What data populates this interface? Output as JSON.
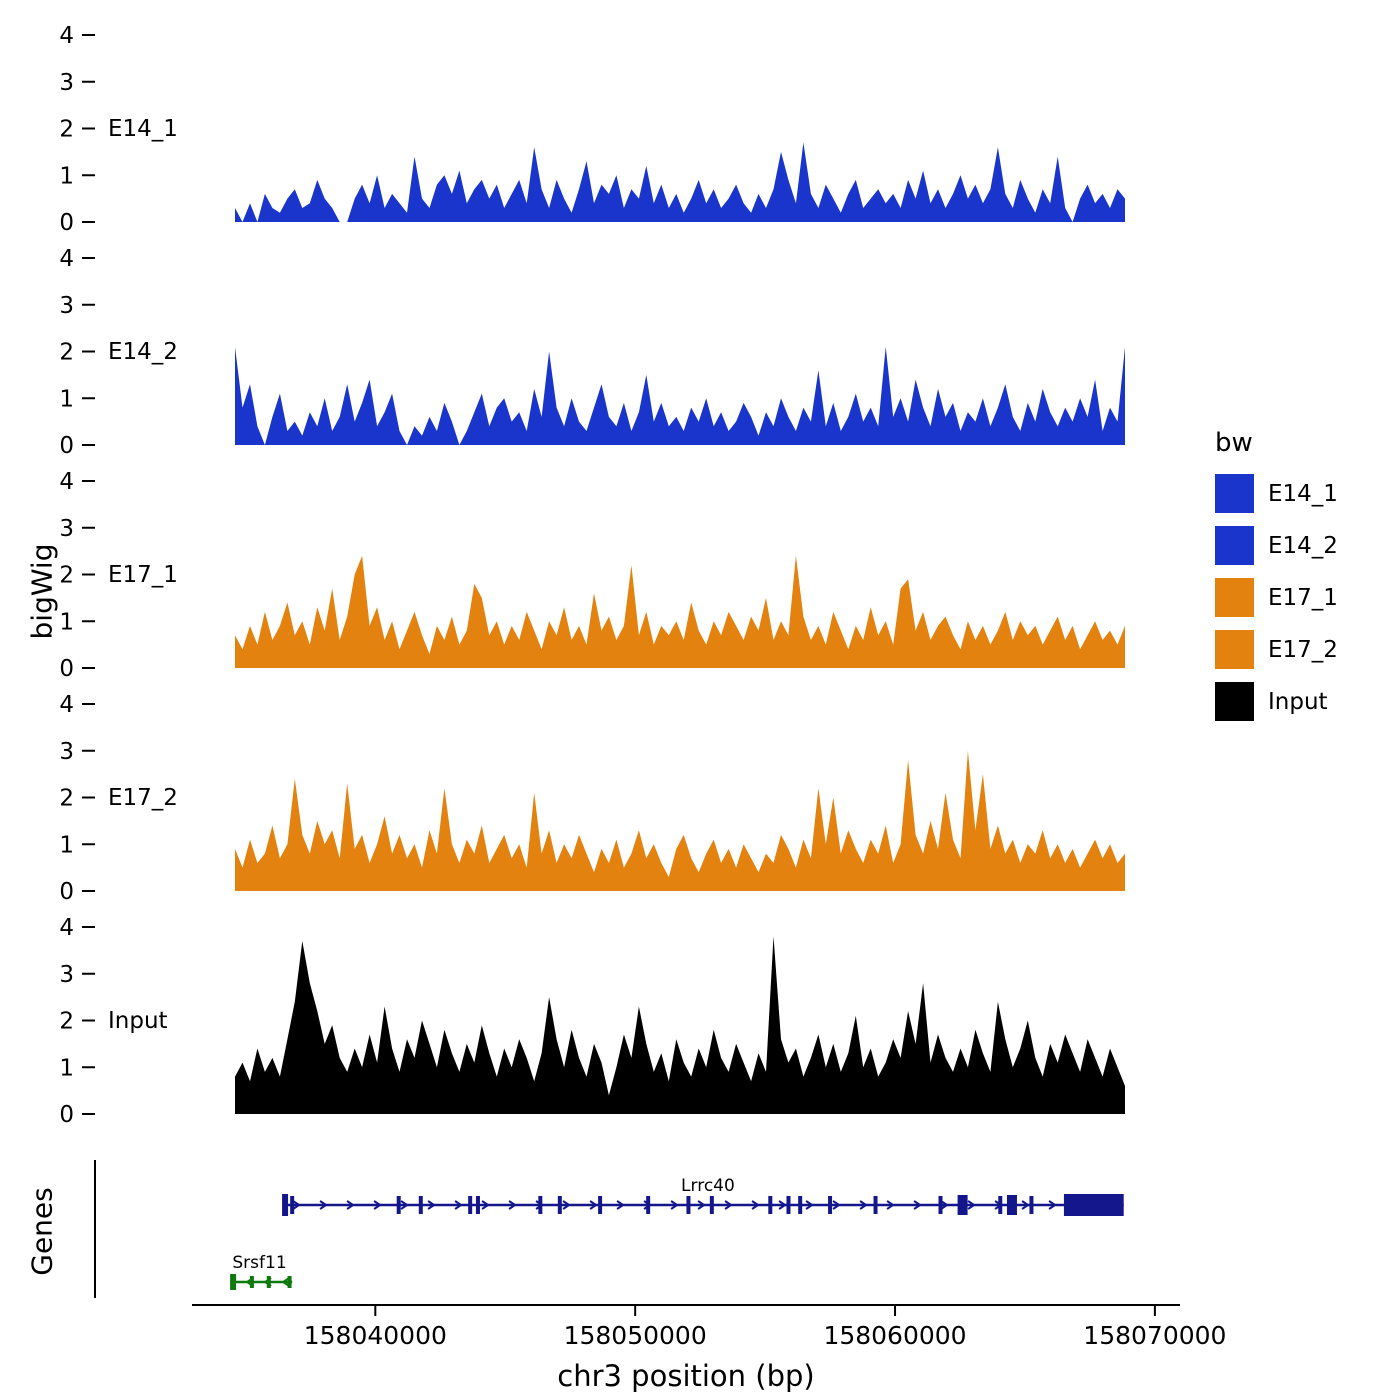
{
  "figure": {
    "background": "#ffffff"
  },
  "labels": {
    "ylabel": "bigWig",
    "genes": "Genes",
    "xlabel": "chr3 position (bp)"
  },
  "legend": {
    "title": "bw",
    "items": [
      {
        "label": "E14_1",
        "color": "#1a35cc"
      },
      {
        "label": "E14_2",
        "color": "#1a35cc"
      },
      {
        "label": "E17_1",
        "color": "#e3820e"
      },
      {
        "label": "E17_2",
        "color": "#e3820e"
      },
      {
        "label": "Input",
        "color": "#000000"
      }
    ]
  },
  "chart_data": {
    "type": "area",
    "title": "",
    "xlabel": "chr3 position (bp)",
    "ylabel": "bigWig",
    "x_range_bp": [
      158034600,
      158068850
    ],
    "x_axis_ticks": [
      158040000,
      158050000,
      158060000,
      158070000
    ],
    "ylim": [
      0,
      4
    ],
    "y_ticks": [
      0,
      1,
      2,
      3,
      4
    ],
    "series": [
      {
        "name": "E14_1",
        "color": "#1a35cc",
        "values": [
          0.3,
          0,
          0.4,
          0,
          0.6,
          0.3,
          0.2,
          0.5,
          0.7,
          0.3,
          0.4,
          0.9,
          0.5,
          0.3,
          0,
          0,
          0.5,
          0.8,
          0.4,
          1.0,
          0.3,
          0.6,
          0.4,
          0.2,
          1.4,
          0.5,
          0.3,
          0.8,
          1.0,
          0.6,
          1.1,
          0.4,
          0.7,
          0.9,
          0.5,
          0.8,
          0.3,
          0.6,
          0.9,
          0.4,
          1.6,
          0.7,
          0.3,
          0.9,
          0.5,
          0.2,
          0.7,
          1.3,
          0.4,
          0.8,
          0.6,
          1.0,
          0.3,
          0.7,
          0.5,
          1.2,
          0.4,
          0.8,
          0.3,
          0.6,
          0.2,
          0.5,
          0.9,
          0.4,
          0.7,
          0.3,
          0.5,
          0.8,
          0.4,
          0.2,
          0.6,
          0.3,
          0.7,
          1.5,
          0.9,
          0.4,
          1.7,
          0.6,
          0.3,
          0.8,
          0.5,
          0.2,
          0.6,
          0.9,
          0.3,
          0.5,
          0.7,
          0.4,
          0.6,
          0.3,
          0.9,
          0.5,
          1.1,
          0.4,
          0.7,
          0.3,
          0.6,
          1.0,
          0.5,
          0.8,
          0.4,
          0.7,
          1.6,
          0.6,
          0.3,
          0.9,
          0.5,
          0.2,
          0.7,
          0.4,
          1.4,
          0.3,
          0,
          0.5,
          0.8,
          0.4,
          0.6,
          0.3,
          0.7,
          0.5
        ]
      },
      {
        "name": "E14_2",
        "color": "#1a35cc",
        "values": [
          2.1,
          0.8,
          1.3,
          0.4,
          0,
          0.6,
          1.1,
          0.3,
          0.5,
          0.2,
          0.7,
          0.4,
          1.0,
          0.3,
          0.6,
          1.3,
          0.5,
          0.9,
          1.4,
          0.4,
          0.7,
          1.1,
          0.3,
          0,
          0.4,
          0.2,
          0.6,
          0.3,
          0.9,
          0.5,
          0,
          0.3,
          0.7,
          1.1,
          0.4,
          0.8,
          1.0,
          0.5,
          0.7,
          0.3,
          1.2,
          0.6,
          2.0,
          0.8,
          0.4,
          1.0,
          0.5,
          0.3,
          0.8,
          1.3,
          0.6,
          0.4,
          0.9,
          0.3,
          0.7,
          1.5,
          0.5,
          0.9,
          0.4,
          0.6,
          0.3,
          0.8,
          0.5,
          1.0,
          0.4,
          0.7,
          0.3,
          0.5,
          0.9,
          0.6,
          0.2,
          0.7,
          0.4,
          1.0,
          0.6,
          0.3,
          0.8,
          0.5,
          1.6,
          0.4,
          0.9,
          0.3,
          0.6,
          1.1,
          0.5,
          0.8,
          0.4,
          2.1,
          0.6,
          1.0,
          0.5,
          1.4,
          0.8,
          0.4,
          1.2,
          0.6,
          0.9,
          0.3,
          0.7,
          0.5,
          1.0,
          0.4,
          0.8,
          1.3,
          0.6,
          0.3,
          0.9,
          0.5,
          1.2,
          0.7,
          0.4,
          0.8,
          0.5,
          1.0,
          0.6,
          1.4,
          0.3,
          0.8,
          0.5,
          2.1
        ]
      },
      {
        "name": "E17_1",
        "color": "#e3820e",
        "values": [
          0.7,
          0.4,
          0.9,
          0.5,
          1.2,
          0.6,
          0.9,
          1.4,
          0.7,
          1.0,
          0.5,
          1.3,
          0.8,
          1.7,
          0.6,
          1.1,
          2.0,
          2.4,
          0.9,
          1.3,
          0.6,
          1.0,
          0.4,
          0.8,
          1.2,
          0.7,
          0.3,
          0.9,
          0.6,
          1.1,
          0.5,
          0.8,
          1.8,
          1.5,
          0.7,
          1.0,
          0.5,
          0.9,
          0.6,
          1.2,
          0.8,
          0.4,
          1.0,
          0.7,
          1.3,
          0.6,
          0.9,
          0.5,
          1.6,
          0.8,
          1.1,
          0.6,
          0.9,
          2.2,
          0.7,
          1.2,
          0.5,
          0.9,
          0.7,
          1.0,
          0.6,
          1.4,
          0.8,
          0.5,
          1.0,
          0.7,
          1.2,
          0.9,
          0.6,
          1.1,
          0.8,
          1.5,
          0.6,
          1.0,
          0.7,
          2.4,
          1.1,
          0.6,
          0.9,
          0.5,
          1.2,
          0.8,
          0.4,
          0.9,
          0.6,
          1.3,
          0.7,
          1.0,
          0.5,
          1.7,
          1.9,
          0.8,
          1.2,
          0.6,
          0.9,
          1.1,
          0.7,
          0.4,
          1.0,
          0.6,
          0.9,
          0.5,
          0.8,
          1.2,
          0.6,
          1.0,
          0.7,
          0.9,
          0.5,
          0.8,
          1.1,
          0.6,
          0.9,
          0.4,
          0.7,
          1.0,
          0.6,
          0.8,
          0.5,
          0.9
        ]
      },
      {
        "name": "E17_2",
        "color": "#e3820e",
        "values": [
          0.9,
          0.5,
          1.1,
          0.6,
          0.8,
          1.4,
          0.7,
          1.0,
          2.4,
          1.2,
          0.8,
          1.5,
          1.0,
          1.3,
          0.7,
          2.3,
          0.9,
          1.2,
          0.6,
          1.0,
          1.6,
          0.8,
          1.2,
          0.7,
          1.0,
          0.5,
          1.3,
          0.8,
          2.2,
          1.0,
          0.6,
          1.1,
          0.8,
          1.4,
          0.6,
          0.9,
          1.2,
          0.7,
          1.0,
          0.5,
          2.1,
          0.8,
          1.3,
          0.6,
          1.0,
          0.7,
          1.2,
          0.8,
          0.4,
          0.9,
          0.6,
          1.1,
          0.5,
          0.8,
          1.3,
          0.7,
          1.0,
          0.6,
          0.3,
          0.9,
          1.2,
          0.7,
          0.4,
          0.8,
          1.1,
          0.6,
          0.9,
          0.5,
          1.0,
          0.7,
          0.4,
          0.8,
          0.6,
          1.2,
          0.9,
          0.5,
          1.1,
          0.7,
          2.2,
          1.0,
          2.0,
          0.8,
          1.3,
          0.9,
          0.6,
          1.1,
          0.8,
          1.4,
          0.6,
          1.0,
          2.8,
          1.2,
          0.8,
          1.5,
          0.9,
          2.1,
          1.1,
          0.7,
          3.0,
          1.3,
          2.5,
          0.9,
          1.4,
          0.8,
          1.1,
          0.6,
          1.0,
          0.8,
          1.3,
          0.7,
          1.0,
          0.6,
          0.9,
          0.5,
          0.8,
          1.1,
          0.7,
          1.0,
          0.6,
          0.8
        ]
      },
      {
        "name": "Input",
        "color": "#000000",
        "values": [
          0.8,
          1.1,
          0.7,
          1.4,
          0.9,
          1.2,
          0.8,
          1.6,
          2.4,
          3.7,
          2.8,
          2.2,
          1.5,
          1.9,
          1.2,
          0.9,
          1.4,
          1.0,
          1.7,
          1.1,
          2.3,
          1.4,
          0.9,
          1.6,
          1.2,
          2.0,
          1.5,
          1.0,
          1.8,
          1.3,
          0.9,
          1.5,
          1.1,
          1.9,
          1.3,
          0.8,
          1.4,
          1.0,
          1.6,
          1.2,
          0.7,
          1.3,
          2.5,
          1.6,
          1.0,
          1.8,
          1.2,
          0.8,
          1.5,
          1.1,
          0.4,
          1.0,
          1.7,
          1.2,
          2.3,
          1.5,
          0.9,
          1.3,
          0.7,
          1.6,
          1.1,
          0.8,
          1.4,
          1.0,
          1.8,
          1.2,
          0.9,
          1.5,
          1.1,
          0.7,
          1.3,
          0.9,
          3.8,
          1.6,
          1.1,
          1.4,
          0.8,
          1.2,
          1.7,
          1.0,
          1.5,
          0.9,
          1.3,
          2.1,
          1.0,
          1.4,
          0.8,
          1.1,
          1.6,
          1.2,
          2.2,
          1.5,
          2.8,
          1.1,
          1.7,
          1.2,
          0.9,
          1.4,
          1.0,
          1.8,
          1.3,
          0.9,
          2.4,
          1.6,
          1.0,
          1.4,
          2.0,
          1.2,
          0.8,
          1.5,
          1.1,
          1.7,
          1.3,
          0.9,
          1.6,
          1.2,
          0.8,
          1.4,
          1.0,
          0.6
        ]
      }
    ],
    "genes": [
      {
        "name": "Lrrc40",
        "strand": "+",
        "color": "#14168c",
        "start": 158036450,
        "end": 158068800,
        "exons": [
          158036800,
          158040900,
          158041750,
          158043650,
          158043950,
          158046350,
          158047100,
          158048650,
          158050500,
          158052050,
          158052950,
          158055200,
          158055900,
          158056350,
          158057500,
          158059250,
          158061750,
          158064050,
          158065250
        ],
        "wide_exons": [
          158062600,
          158064500
        ],
        "thick_exon": [
          158066500,
          158068800
        ],
        "label_pos": 158052800
      },
      {
        "name": "Srsf11",
        "strand": "-",
        "color": "#0e7a0e",
        "start": 158034450,
        "end": 158036800,
        "exons": [
          158034500,
          158035250,
          158035900,
          158036700
        ],
        "wide_exons": [],
        "thick_exon": null,
        "label_pos": 158034500
      }
    ]
  }
}
